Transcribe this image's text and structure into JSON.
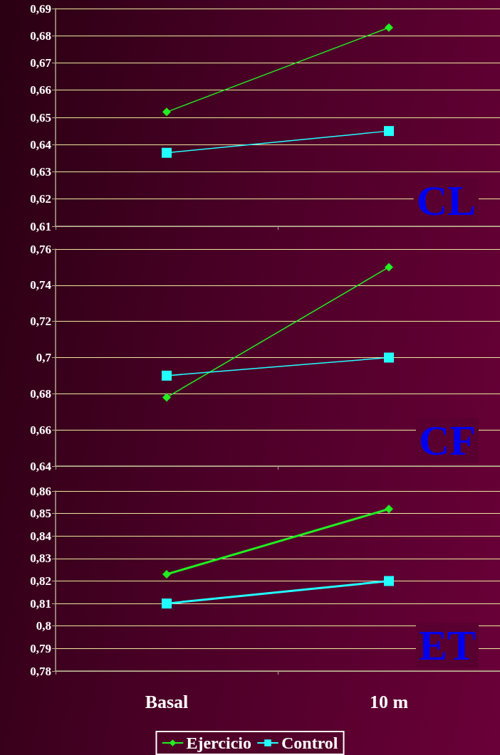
{
  "chart_data": [
    {
      "type": "line",
      "categories": [
        null,
        null
      ],
      "ylim": [
        0.61,
        0.69
      ],
      "yticks": [
        {
          "value": 0.61,
          "label": "0,61"
        },
        {
          "value": 0.62,
          "label": "0,62"
        },
        {
          "value": 0.63,
          "label": "0,63"
        },
        {
          "value": 0.64,
          "label": "0,64"
        },
        {
          "value": 0.65,
          "label": "0,65"
        },
        {
          "value": 0.66,
          "label": "0,66"
        },
        {
          "value": 0.67,
          "label": "0,67"
        },
        {
          "value": 0.68,
          "label": "0,68"
        },
        {
          "value": 0.69,
          "label": "0,69"
        }
      ],
      "grid": "y",
      "tick_labels": "y",
      "annotations": [
        "CL"
      ],
      "series": [
        {
          "color": "#22ee22",
          "marker": "diamond",
          "values": [
            0.652,
            0.683
          ]
        },
        {
          "color": "#22ffff",
          "marker": "square",
          "values": [
            0.637,
            0.645
          ]
        }
      ]
    },
    {
      "type": "line",
      "categories": [
        null,
        null
      ],
      "ylim": [
        0.64,
        0.76
      ],
      "yticks": [
        {
          "value": 0.64,
          "label": "0,64"
        },
        {
          "value": 0.66,
          "label": "0,66"
        },
        {
          "value": 0.68,
          "label": "0,68"
        },
        {
          "value": 0.7,
          "label": "0,7"
        },
        {
          "value": 0.72,
          "label": "0,72"
        },
        {
          "value": 0.74,
          "label": "0,74"
        },
        {
          "value": 0.76,
          "label": "0,76"
        }
      ],
      "grid": "y",
      "tick_labels": "y",
      "annotations": [
        "CF"
      ],
      "series": [
        {
          "color": "#22ee22",
          "marker": "diamond",
          "values": [
            0.678,
            0.75
          ]
        },
        {
          "color": "#22ffff",
          "marker": "square",
          "values": [
            0.69,
            0.7
          ]
        }
      ]
    },
    {
      "type": "line",
      "categories": [
        "Basal",
        "10 m"
      ],
      "ylim": [
        0.78,
        0.86
      ],
      "yticks": [
        {
          "value": 0.78,
          "label": "0,78"
        },
        {
          "value": 0.79,
          "label": "0,79"
        },
        {
          "value": 0.8,
          "label": "0,8"
        },
        {
          "value": 0.81,
          "label": "0,81"
        },
        {
          "value": 0.82,
          "label": "0,82"
        },
        {
          "value": 0.83,
          "label": "0,83"
        },
        {
          "value": 0.84,
          "label": "0,84"
        },
        {
          "value": 0.85,
          "label": "0,85"
        },
        {
          "value": 0.86,
          "label": "0,86"
        }
      ],
      "grid": "y",
      "legend": "bottom",
      "annotations": [
        "ET"
      ],
      "series": [
        {
          "name": "Ejercicio",
          "color": "#22ee22",
          "marker": "diamond",
          "values": [
            0.823,
            0.852
          ]
        },
        {
          "name": "Control",
          "color": "#22ffff",
          "marker": "square",
          "values": [
            0.81,
            0.82
          ]
        }
      ]
    }
  ]
}
